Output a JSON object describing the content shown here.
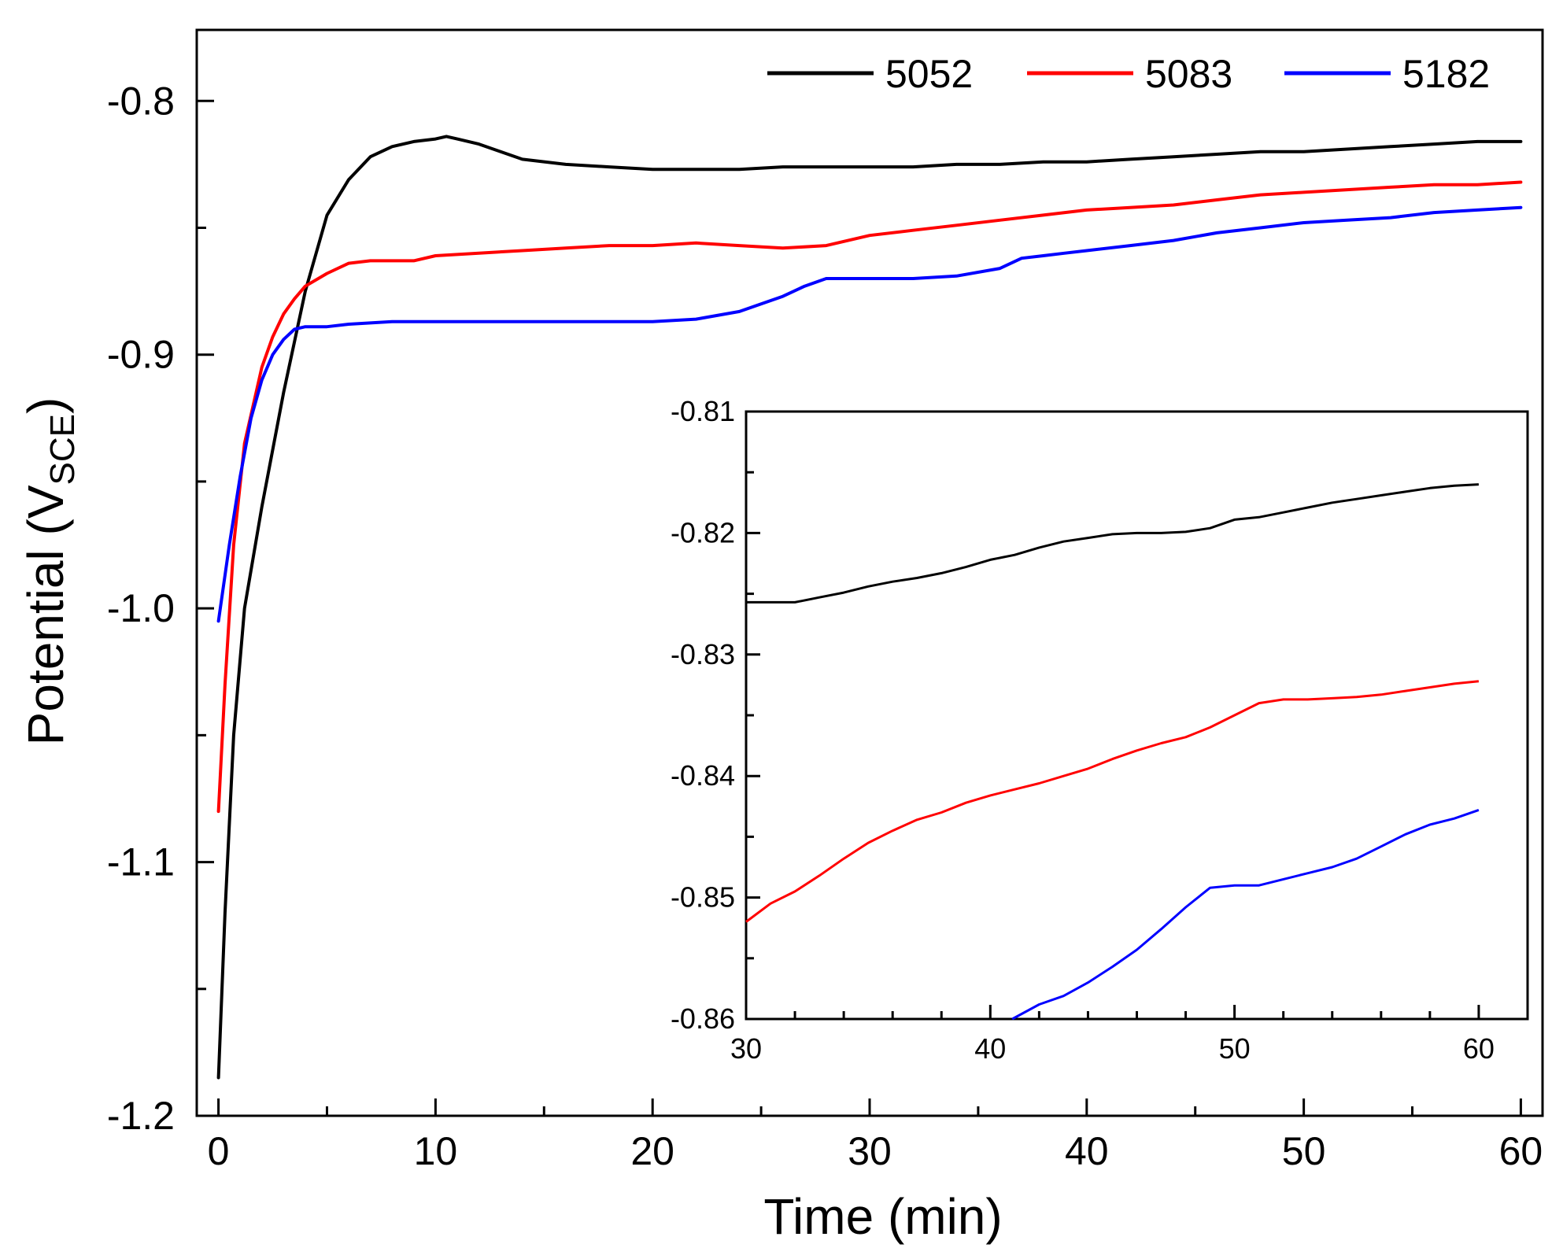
{
  "chart_data": [
    {
      "type": "line",
      "title": "",
      "xlabel": "Time (min)",
      "ylabel": "Potential  (V",
      "ylabel_subscript": "SCE",
      "ylabel_close": ")",
      "xlim": [
        -1,
        61
      ],
      "ylim": [
        -1.2,
        -0.772
      ],
      "x_ticks": [
        0,
        10,
        20,
        30,
        40,
        50,
        60
      ],
      "y_ticks": [
        -0.8,
        -0.9,
        -1.0,
        -1.1,
        -1.2
      ],
      "x_tick_labels": [
        "0",
        "10",
        "20",
        "30",
        "40",
        "50",
        "60"
      ],
      "y_tick_labels": [
        "-0.8",
        "-0.9",
        "-1.0",
        "-1.1",
        "-1.2"
      ],
      "legend_position": "top-right",
      "grid": false,
      "series": [
        {
          "name": "5052",
          "color": "#000000",
          "x": [
            0,
            0.3,
            0.7,
            1.2,
            2,
            3,
            4,
            5,
            6,
            7,
            8,
            9,
            10,
            10.5,
            11,
            12,
            13,
            14,
            16,
            18,
            20,
            22,
            24,
            26,
            28,
            30,
            32,
            34,
            36,
            38,
            40,
            42,
            44,
            46,
            48,
            50,
            52,
            54,
            56,
            58,
            60
          ],
          "y": [
            -1.185,
            -1.12,
            -1.05,
            -1.0,
            -0.96,
            -0.915,
            -0.875,
            -0.845,
            -0.831,
            -0.822,
            -0.818,
            -0.816,
            -0.815,
            -0.814,
            -0.815,
            -0.817,
            -0.82,
            -0.823,
            -0.825,
            -0.826,
            -0.827,
            -0.827,
            -0.827,
            -0.826,
            -0.826,
            -0.826,
            -0.826,
            -0.825,
            -0.825,
            -0.824,
            -0.824,
            -0.823,
            -0.822,
            -0.821,
            -0.82,
            -0.82,
            -0.819,
            -0.818,
            -0.817,
            -0.816,
            -0.816
          ]
        },
        {
          "name": "5083",
          "color": "#ff0000",
          "x": [
            0,
            0.3,
            0.7,
            1.2,
            2,
            2.5,
            3,
            3.5,
            4,
            5,
            6,
            7,
            8,
            9,
            10,
            12,
            14,
            16,
            18,
            20,
            22,
            24,
            26,
            28,
            30,
            32,
            34,
            36,
            38,
            40,
            42,
            44,
            46,
            48,
            50,
            52,
            54,
            56,
            58,
            60
          ],
          "y": [
            -1.08,
            -1.03,
            -0.975,
            -0.935,
            -0.905,
            -0.893,
            -0.884,
            -0.878,
            -0.873,
            -0.868,
            -0.864,
            -0.863,
            -0.863,
            -0.863,
            -0.861,
            -0.86,
            -0.859,
            -0.858,
            -0.857,
            -0.857,
            -0.856,
            -0.857,
            -0.858,
            -0.857,
            -0.853,
            -0.851,
            -0.849,
            -0.847,
            -0.845,
            -0.843,
            -0.842,
            -0.841,
            -0.839,
            -0.837,
            -0.836,
            -0.835,
            -0.834,
            -0.833,
            -0.833,
            -0.832
          ]
        },
        {
          "name": "5182",
          "color": "#0000ff",
          "x": [
            0,
            0.5,
            1,
            1.5,
            2,
            2.5,
            3,
            3.5,
            4,
            5,
            6,
            8,
            10,
            12,
            14,
            16,
            18,
            20,
            22,
            24,
            26,
            27,
            28,
            29,
            30,
            32,
            34,
            36,
            37,
            38,
            39,
            40,
            42,
            44,
            46,
            48,
            50,
            52,
            54,
            56,
            58,
            60
          ],
          "y": [
            -1.005,
            -0.975,
            -0.948,
            -0.925,
            -0.91,
            -0.9,
            -0.894,
            -0.89,
            -0.889,
            -0.889,
            -0.888,
            -0.887,
            -0.887,
            -0.887,
            -0.887,
            -0.887,
            -0.887,
            -0.887,
            -0.886,
            -0.883,
            -0.877,
            -0.873,
            -0.87,
            -0.87,
            -0.87,
            -0.87,
            -0.869,
            -0.866,
            -0.862,
            -0.861,
            -0.86,
            -0.859,
            -0.857,
            -0.855,
            -0.852,
            -0.85,
            -0.848,
            -0.847,
            -0.846,
            -0.844,
            -0.843,
            -0.842
          ]
        }
      ]
    },
    {
      "type": "line",
      "title": "",
      "xlabel": "",
      "ylabel": "",
      "inset": true,
      "xlim": [
        30,
        62
      ],
      "ylim": [
        -0.86,
        -0.81
      ],
      "x_ticks": [
        30,
        40,
        50,
        60
      ],
      "y_ticks": [
        -0.81,
        -0.82,
        -0.83,
        -0.84,
        -0.85,
        -0.86
      ],
      "x_tick_labels": [
        "30",
        "40",
        "50",
        "60"
      ],
      "y_tick_labels": [
        "-0.81",
        "-0.82",
        "-0.83",
        "-0.84",
        "-0.85",
        "-0.86"
      ],
      "grid": false,
      "series": [
        {
          "color": "#000000",
          "x": [
            30,
            31,
            32,
            33,
            34,
            35,
            36,
            37,
            38,
            39,
            40,
            41,
            42,
            43,
            44,
            45,
            46,
            47,
            48,
            49,
            50,
            51,
            52,
            53,
            54,
            55,
            56,
            57,
            58,
            59,
            60
          ],
          "y": [
            -0.8257,
            -0.8257,
            -0.8257,
            -0.8253,
            -0.8249,
            -0.8244,
            -0.824,
            -0.8237,
            -0.8233,
            -0.8228,
            -0.8222,
            -0.8218,
            -0.8212,
            -0.8207,
            -0.8204,
            -0.8201,
            -0.82,
            -0.82,
            -0.8199,
            -0.8196,
            -0.8189,
            -0.8187,
            -0.8183,
            -0.8179,
            -0.8175,
            -0.8172,
            -0.8169,
            -0.8166,
            -0.8163,
            -0.8161,
            -0.816
          ]
        },
        {
          "color": "#ff0000",
          "x": [
            30,
            31,
            32,
            33,
            34,
            35,
            36,
            37,
            38,
            39,
            40,
            41,
            42,
            43,
            44,
            45,
            46,
            47,
            48,
            49,
            50,
            51,
            52,
            53,
            54,
            55,
            56,
            57,
            58,
            59,
            60
          ],
          "y": [
            -0.852,
            -0.8505,
            -0.8495,
            -0.8482,
            -0.8468,
            -0.8455,
            -0.8445,
            -0.8436,
            -0.843,
            -0.8422,
            -0.8416,
            -0.8411,
            -0.8406,
            -0.84,
            -0.8394,
            -0.8386,
            -0.8379,
            -0.8373,
            -0.8368,
            -0.836,
            -0.835,
            -0.834,
            -0.8337,
            -0.8337,
            -0.8336,
            -0.8335,
            -0.8333,
            -0.833,
            -0.8327,
            -0.8324,
            -0.8322
          ]
        },
        {
          "color": "#0000ff",
          "x": [
            40.9,
            42,
            43,
            44,
            45,
            46,
            47,
            48,
            49,
            50,
            51,
            52,
            53,
            54,
            55,
            56,
            57,
            58,
            59,
            60
          ],
          "y": [
            -0.86,
            -0.8588,
            -0.8581,
            -0.857,
            -0.8557,
            -0.8543,
            -0.8526,
            -0.8508,
            -0.8492,
            -0.849,
            -0.849,
            -0.8485,
            -0.848,
            -0.8475,
            -0.8468,
            -0.8458,
            -0.8448,
            -0.844,
            -0.8435,
            -0.8428
          ]
        }
      ]
    }
  ]
}
